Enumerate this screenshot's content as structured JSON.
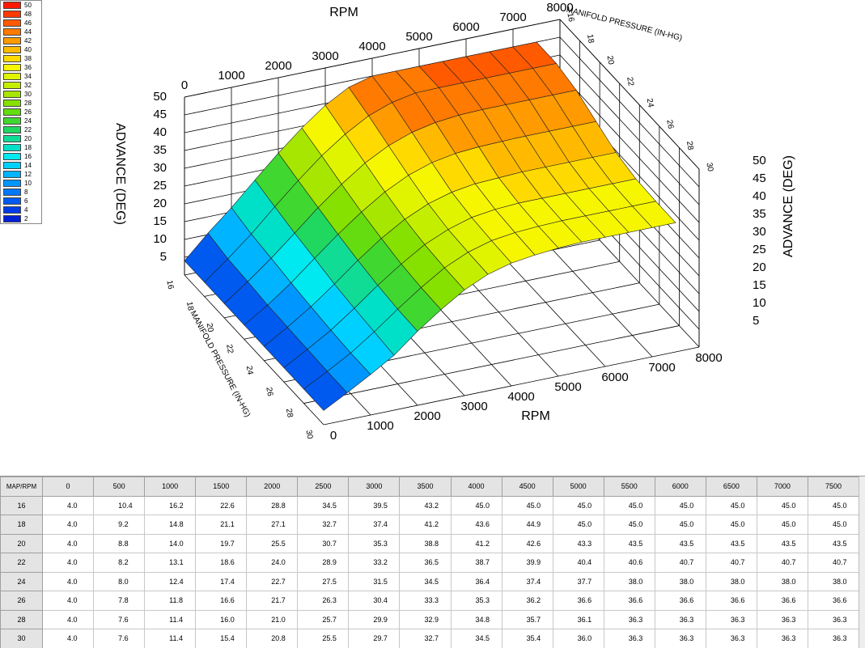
{
  "legend": [
    {
      "label": "50",
      "color": "#ff1a00"
    },
    {
      "label": "48",
      "color": "#ff3a00"
    },
    {
      "label": "46",
      "color": "#ff5a00"
    },
    {
      "label": "44",
      "color": "#ff7a00"
    },
    {
      "label": "42",
      "color": "#ff9a00"
    },
    {
      "label": "40",
      "color": "#ffba00"
    },
    {
      "label": "38",
      "color": "#ffda00"
    },
    {
      "label": "36",
      "color": "#f6f600"
    },
    {
      "label": "34",
      "color": "#e0f400"
    },
    {
      "label": "32",
      "color": "#c4ee00"
    },
    {
      "label": "30",
      "color": "#a6e600"
    },
    {
      "label": "28",
      "color": "#86e000"
    },
    {
      "label": "26",
      "color": "#64dc10"
    },
    {
      "label": "24",
      "color": "#40d830"
    },
    {
      "label": "22",
      "color": "#20d860"
    },
    {
      "label": "20",
      "color": "#10dc96"
    },
    {
      "label": "18",
      "color": "#00e0c8"
    },
    {
      "label": "16",
      "color": "#00e8f0"
    },
    {
      "label": "14",
      "color": "#00d0ff"
    },
    {
      "label": "12",
      "color": "#00b4ff"
    },
    {
      "label": "10",
      "color": "#0096ff"
    },
    {
      "label": "8",
      "color": "#0078f8"
    },
    {
      "label": "6",
      "color": "#005af0"
    },
    {
      "label": "4",
      "color": "#003ce8"
    },
    {
      "label": "2",
      "color": "#0020d8"
    }
  ],
  "plot": {
    "rpm_title": "RPM",
    "map_title": "MANIFOLD PRESSURE (IN-HG)",
    "advance_title": "ADVANCE (DEG)",
    "rpm_ticks": [
      0,
      1000,
      2000,
      3000,
      4000,
      5000,
      6000,
      7000,
      8000
    ],
    "map_ticks": [
      16,
      18,
      20,
      22,
      24,
      26,
      28,
      30
    ],
    "advance_ticks": [
      5,
      10,
      15,
      20,
      25,
      30,
      35,
      40,
      45,
      50
    ]
  },
  "table": {
    "header": [
      "MAP/RPM",
      "0",
      "500",
      "1000",
      "1500",
      "2000",
      "2500",
      "3000",
      "3500",
      "4000",
      "4500",
      "5000",
      "5500",
      "6000",
      "6500",
      "7000",
      "7500"
    ],
    "rows": [
      {
        "label": "16",
        "values": [
          "4.0",
          "10.4",
          "16.2",
          "22.6",
          "28.8",
          "34.5",
          "39.5",
          "43.2",
          "45.0",
          "45.0",
          "45.0",
          "45.0",
          "45.0",
          "45.0",
          "45.0",
          "45.0"
        ]
      },
      {
        "label": "18",
        "values": [
          "4.0",
          "9.2",
          "14.8",
          "21.1",
          "27.1",
          "32.7",
          "37.4",
          "41.2",
          "43.6",
          "44.9",
          "45.0",
          "45.0",
          "45.0",
          "45.0",
          "45.0",
          "45.0"
        ]
      },
      {
        "label": "20",
        "values": [
          "4.0",
          "8.8",
          "14.0",
          "19.7",
          "25.5",
          "30.7",
          "35.3",
          "38.8",
          "41.2",
          "42.6",
          "43.3",
          "43.5",
          "43.5",
          "43.5",
          "43.5",
          "43.5"
        ]
      },
      {
        "label": "22",
        "values": [
          "4.0",
          "8.2",
          "13.1",
          "18.6",
          "24.0",
          "28.9",
          "33.2",
          "36.5",
          "38.7",
          "39.9",
          "40.4",
          "40.6",
          "40.7",
          "40.7",
          "40.7",
          "40.7"
        ]
      },
      {
        "label": "24",
        "values": [
          "4.0",
          "8.0",
          "12.4",
          "17.4",
          "22.7",
          "27.5",
          "31.5",
          "34.5",
          "36.4",
          "37.4",
          "37.7",
          "38.0",
          "38.0",
          "38.0",
          "38.0",
          "38.0"
        ]
      },
      {
        "label": "26",
        "values": [
          "4.0",
          "7.8",
          "11.8",
          "16.6",
          "21.7",
          "26.3",
          "30.4",
          "33.3",
          "35.3",
          "36.2",
          "36.6",
          "36.6",
          "36.6",
          "36.6",
          "36.6",
          "36.6"
        ]
      },
      {
        "label": "28",
        "values": [
          "4.0",
          "7.6",
          "11.4",
          "16.0",
          "21.0",
          "25.7",
          "29.9",
          "32.9",
          "34.8",
          "35.7",
          "36.1",
          "36.3",
          "36.3",
          "36.3",
          "36.3",
          "36.3"
        ]
      },
      {
        "label": "30",
        "values": [
          "4.0",
          "7.6",
          "11.4",
          "15.4",
          "20.8",
          "25.5",
          "29.7",
          "32.7",
          "34.5",
          "35.4",
          "36.0",
          "36.3",
          "36.3",
          "36.3",
          "36.3",
          "36.3"
        ]
      }
    ]
  }
}
